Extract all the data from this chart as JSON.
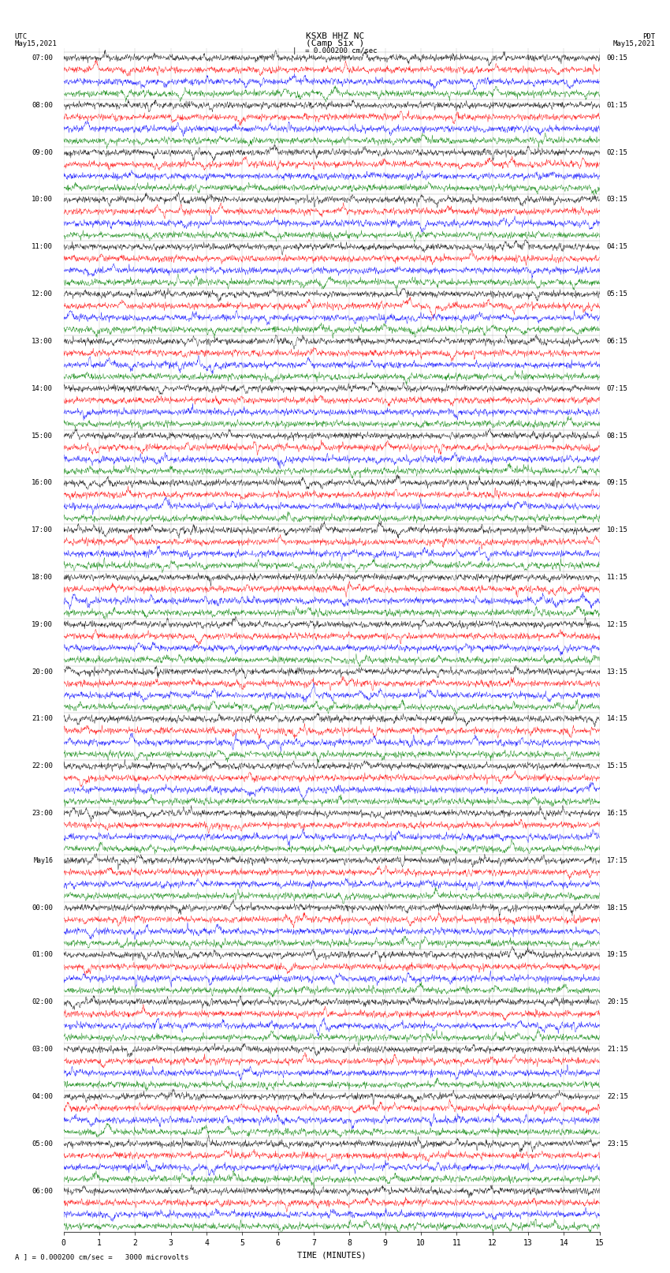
{
  "title_line1": "KSXB HHZ NC",
  "title_line2": "(Camp Six )",
  "left_header": "UTC",
  "left_date": "May15,2021",
  "right_header": "PDT",
  "right_date": "May15,2021",
  "scale_text": "|  = 0.000200 cm/sec",
  "xlabel": "TIME (MINUTES)",
  "bottom_label": "A ] = 0.000200 cm/sec =   3000 microvolts",
  "xmin": 0,
  "xmax": 15,
  "left_times": [
    "07:00",
    "08:00",
    "09:00",
    "10:00",
    "11:00",
    "12:00",
    "13:00",
    "14:00",
    "15:00",
    "16:00",
    "17:00",
    "18:00",
    "19:00",
    "20:00",
    "21:00",
    "22:00",
    "23:00",
    "May16",
    "00:00",
    "01:00",
    "02:00",
    "03:00",
    "04:00",
    "05:00",
    "06:00"
  ],
  "right_times": [
    "00:15",
    "01:15",
    "02:15",
    "03:15",
    "04:15",
    "05:15",
    "06:15",
    "07:15",
    "08:15",
    "09:15",
    "10:15",
    "11:15",
    "12:15",
    "13:15",
    "14:15",
    "15:15",
    "16:15",
    "17:15",
    "18:15",
    "19:15",
    "20:15",
    "21:15",
    "22:15",
    "23:15"
  ],
  "num_rows": 25,
  "traces_per_row": 4,
  "trace_colors": [
    "black",
    "red",
    "blue",
    "green"
  ],
  "bg_color": "white",
  "font_size_title": 8,
  "font_size_labels": 6.5,
  "font_size_axis": 7,
  "noise_seed": 1234
}
